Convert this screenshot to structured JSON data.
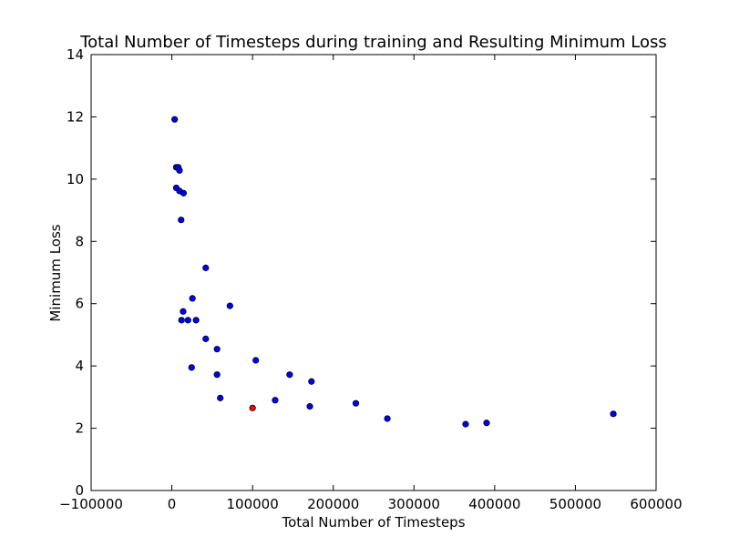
{
  "chart_data": {
    "type": "scatter",
    "title": "Total Number of Timesteps during training and Resulting Minimum Loss",
    "xlabel": "Total Number of Timesteps",
    "ylabel": "Minimum Loss",
    "xlim": [
      -100000,
      600000
    ],
    "ylim": [
      0,
      14
    ],
    "xticks": [
      -100000,
      0,
      100000,
      200000,
      300000,
      400000,
      500000,
      600000
    ],
    "yticks": [
      0,
      2,
      4,
      6,
      8,
      10,
      12,
      14
    ],
    "grid": false,
    "legend": null,
    "colors": {
      "default_point": "#0000ff",
      "highlight_point": "#ff0000",
      "point_edge": "#000000"
    },
    "points": [
      {
        "x": 3500,
        "y": 11.92
      },
      {
        "x": 5500,
        "y": 10.38
      },
      {
        "x": 8000,
        "y": 10.38
      },
      {
        "x": 9500,
        "y": 10.28
      },
      {
        "x": 5500,
        "y": 9.72
      },
      {
        "x": 9500,
        "y": 9.62
      },
      {
        "x": 14500,
        "y": 9.55
      },
      {
        "x": 11500,
        "y": 8.69
      },
      {
        "x": 42000,
        "y": 7.15
      },
      {
        "x": 25500,
        "y": 6.17
      },
      {
        "x": 72000,
        "y": 5.93
      },
      {
        "x": 14000,
        "y": 5.75
      },
      {
        "x": 12000,
        "y": 5.47
      },
      {
        "x": 20000,
        "y": 5.47
      },
      {
        "x": 30000,
        "y": 5.47
      },
      {
        "x": 42000,
        "y": 4.87
      },
      {
        "x": 56000,
        "y": 4.54
      },
      {
        "x": 104000,
        "y": 4.18
      },
      {
        "x": 24500,
        "y": 3.95
      },
      {
        "x": 56000,
        "y": 3.72
      },
      {
        "x": 146000,
        "y": 3.72
      },
      {
        "x": 173000,
        "y": 3.5
      },
      {
        "x": 60000,
        "y": 2.97
      },
      {
        "x": 128000,
        "y": 2.9
      },
      {
        "x": 228000,
        "y": 2.8
      },
      {
        "x": 171000,
        "y": 2.7
      },
      {
        "x": 100000,
        "y": 2.65,
        "highlight": true
      },
      {
        "x": 267000,
        "y": 2.31
      },
      {
        "x": 364000,
        "y": 2.13
      },
      {
        "x": 390000,
        "y": 2.17
      },
      {
        "x": 547000,
        "y": 2.46
      }
    ]
  }
}
